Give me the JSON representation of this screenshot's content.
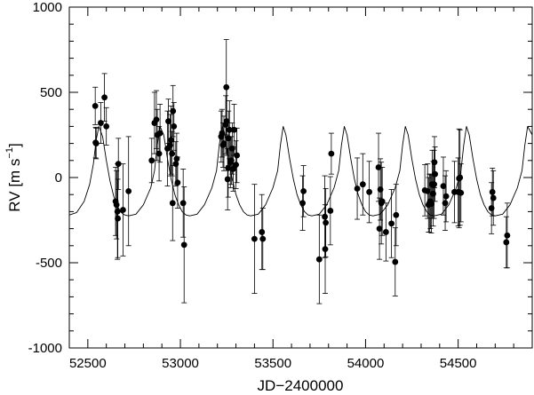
{
  "chart_data": {
    "type": "scatter",
    "title": "",
    "xlabel": "JD−2400000",
    "ylabel": "RV  [m s",
    "ylabel_exp": "−1",
    "ylabel_end": "]",
    "xlim": [
      52400,
      54900
    ],
    "ylim": [
      -1000,
      1000
    ],
    "grid": false,
    "x_ticks": [
      52500,
      53000,
      53500,
      54000,
      54500
    ],
    "x_tick_labels": [
      "52500",
      "53000",
      "53500",
      "54000",
      "54500"
    ],
    "y_ticks": [
      -1000,
      -500,
      0,
      500,
      1000
    ],
    "y_tick_labels": [
      "-1000",
      "-500",
      "0",
      "500",
      "1000"
    ],
    "series": [
      {
        "kind": "points_with_errorbars",
        "color": "#000000",
        "points": [
          {
            "x": 52540,
            "y": 420,
            "err": 110
          },
          {
            "x": 52542,
            "y": 205,
            "err": 90
          },
          {
            "x": 52545,
            "y": 200,
            "err": 90
          },
          {
            "x": 52570,
            "y": 320,
            "err": 120
          },
          {
            "x": 52590,
            "y": 470,
            "err": 140
          },
          {
            "x": 52600,
            "y": 300,
            "err": 110
          },
          {
            "x": 52650,
            "y": -140,
            "err": 200
          },
          {
            "x": 52655,
            "y": -160,
            "err": 200
          },
          {
            "x": 52660,
            "y": -200,
            "err": 280
          },
          {
            "x": 52662,
            "y": -240,
            "err": 230
          },
          {
            "x": 52665,
            "y": 80,
            "err": 150
          },
          {
            "x": 52690,
            "y": -190,
            "err": 270
          },
          {
            "x": 52720,
            "y": -80,
            "err": 320
          },
          {
            "x": 52845,
            "y": 100,
            "err": 130
          },
          {
            "x": 52860,
            "y": 320,
            "err": 180
          },
          {
            "x": 52870,
            "y": 340,
            "err": 170
          },
          {
            "x": 52875,
            "y": 250,
            "err": 150
          },
          {
            "x": 52885,
            "y": 140,
            "err": 160
          },
          {
            "x": 52890,
            "y": 260,
            "err": 170
          },
          {
            "x": 52930,
            "y": 170,
            "err": 220
          },
          {
            "x": 52935,
            "y": 330,
            "err": 130
          },
          {
            "x": 52945,
            "y": 190,
            "err": 180
          },
          {
            "x": 52950,
            "y": 220,
            "err": 200
          },
          {
            "x": 52955,
            "y": 140,
            "err": 130
          },
          {
            "x": 52958,
            "y": -150,
            "err": 220
          },
          {
            "x": 52960,
            "y": 390,
            "err": 150
          },
          {
            "x": 52965,
            "y": 300,
            "err": 140
          },
          {
            "x": 52975,
            "y": 80,
            "err": 130
          },
          {
            "x": 52980,
            "y": 110,
            "err": 150
          },
          {
            "x": 52985,
            "y": -30,
            "err": 150
          },
          {
            "x": 53015,
            "y": -150,
            "err": 200
          },
          {
            "x": 53020,
            "y": -395,
            "err": 340
          },
          {
            "x": 53220,
            "y": 240,
            "err": 150
          },
          {
            "x": 53225,
            "y": 260,
            "err": 140
          },
          {
            "x": 53230,
            "y": 190,
            "err": 130
          },
          {
            "x": 53235,
            "y": 200,
            "err": 160
          },
          {
            "x": 53245,
            "y": 310,
            "err": 170
          },
          {
            "x": 53248,
            "y": 530,
            "err": 280
          },
          {
            "x": 53250,
            "y": 330,
            "err": 200
          },
          {
            "x": 53255,
            "y": -10,
            "err": 180
          },
          {
            "x": 53258,
            "y": 55,
            "err": 170
          },
          {
            "x": 53260,
            "y": 230,
            "err": 160
          },
          {
            "x": 53265,
            "y": 280,
            "err": 170
          },
          {
            "x": 53270,
            "y": 90,
            "err": 150
          },
          {
            "x": 53275,
            "y": 100,
            "err": 140
          },
          {
            "x": 53280,
            "y": 170,
            "err": 150
          },
          {
            "x": 53285,
            "y": 50,
            "err": 130
          },
          {
            "x": 53290,
            "y": 280,
            "err": 150
          },
          {
            "x": 53300,
            "y": 75,
            "err": 140
          },
          {
            "x": 53305,
            "y": 130,
            "err": 160
          },
          {
            "x": 53400,
            "y": -360,
            "err": 320
          },
          {
            "x": 53440,
            "y": -320,
            "err": 220
          },
          {
            "x": 53445,
            "y": -360,
            "err": 180
          },
          {
            "x": 53660,
            "y": -150,
            "err": 160
          },
          {
            "x": 53665,
            "y": -80,
            "err": 150
          },
          {
            "x": 53750,
            "y": -480,
            "err": 260
          },
          {
            "x": 53780,
            "y": -230,
            "err": 240
          },
          {
            "x": 53782,
            "y": -420,
            "err": 260
          },
          {
            "x": 53785,
            "y": -265,
            "err": 200
          },
          {
            "x": 53810,
            "y": -195,
            "err": 200
          },
          {
            "x": 53815,
            "y": 140,
            "err": 120
          },
          {
            "x": 53955,
            "y": -65,
            "err": 180
          },
          {
            "x": 53985,
            "y": -40,
            "err": 180
          },
          {
            "x": 54020,
            "y": -85,
            "err": 180
          },
          {
            "x": 54070,
            "y": 60,
            "err": 200
          },
          {
            "x": 54075,
            "y": -300,
            "err": 180
          },
          {
            "x": 54080,
            "y": -70,
            "err": 180
          },
          {
            "x": 54085,
            "y": -150,
            "err": 240
          },
          {
            "x": 54090,
            "y": -140,
            "err": 200
          },
          {
            "x": 54110,
            "y": -320,
            "err": 170
          },
          {
            "x": 54140,
            "y": -270,
            "err": 200
          },
          {
            "x": 54160,
            "y": -495,
            "err": 200
          },
          {
            "x": 54165,
            "y": -220,
            "err": 180
          },
          {
            "x": 54320,
            "y": -75,
            "err": 150
          },
          {
            "x": 54335,
            "y": -80,
            "err": 160
          },
          {
            "x": 54340,
            "y": -160,
            "err": 160
          },
          {
            "x": 54345,
            "y": -150,
            "err": 170
          },
          {
            "x": 54350,
            "y": -140,
            "err": 160
          },
          {
            "x": 54355,
            "y": -155,
            "err": 170
          },
          {
            "x": 54360,
            "y": -40,
            "err": 200
          },
          {
            "x": 54365,
            "y": -95,
            "err": 190
          },
          {
            "x": 54370,
            "y": -40,
            "err": 200
          },
          {
            "x": 54372,
            "y": 90,
            "err": 150
          },
          {
            "x": 54375,
            "y": 20,
            "err": 160
          },
          {
            "x": 54420,
            "y": -50,
            "err": 170
          },
          {
            "x": 54430,
            "y": -150,
            "err": 160
          },
          {
            "x": 54435,
            "y": -110,
            "err": 150
          },
          {
            "x": 54480,
            "y": -85,
            "err": 180
          },
          {
            "x": 54500,
            "y": -85,
            "err": 200
          },
          {
            "x": 54505,
            "y": -5,
            "err": 290
          },
          {
            "x": 54510,
            "y": 0,
            "err": 280
          },
          {
            "x": 54515,
            "y": -90,
            "err": 170
          },
          {
            "x": 54680,
            "y": -180,
            "err": 150
          },
          {
            "x": 54685,
            "y": -85,
            "err": 140
          },
          {
            "x": 54690,
            "y": -120,
            "err": 160
          },
          {
            "x": 54760,
            "y": -380,
            "err": 150
          },
          {
            "x": 54765,
            "y": -340,
            "err": 190
          }
        ]
      },
      {
        "kind": "model_curve",
        "color": "#000000",
        "x": [
          52400,
          52440,
          52480,
          52510,
          52530,
          52545,
          52560,
          52580,
          52600,
          52620,
          52640,
          52660,
          52680,
          52700,
          52720,
          52760,
          52800,
          52840,
          52860,
          52875,
          52890,
          52910,
          52930,
          52950,
          52970,
          52990,
          53010,
          53030,
          53050,
          53090,
          53130,
          53170,
          53195,
          53210,
          53225,
          53240,
          53260,
          53280,
          53300,
          53320,
          53340,
          53360,
          53380,
          53420,
          53460,
          53500,
          53525,
          53540,
          53555,
          53570,
          53590,
          53610,
          53630,
          53650,
          53670,
          53690,
          53710,
          53750,
          53790,
          53830,
          53855,
          53870,
          53885,
          53900,
          53920,
          53940,
          53960,
          53980,
          54000,
          54020,
          54040,
          54080,
          54120,
          54160,
          54185,
          54200,
          54215,
          54230,
          54250,
          54270,
          54290,
          54310,
          54330,
          54350,
          54370,
          54410,
          54450,
          54490,
          54515,
          54530,
          54545,
          54560,
          54580,
          54600,
          54620,
          54640,
          54660,
          54680,
          54700,
          54740,
          54780,
          54820,
          54845,
          54860,
          54875,
          54900
        ],
        "y": [
          -220,
          -205,
          -140,
          -40,
          80,
          220,
          300,
          240,
          100,
          -20,
          -110,
          -170,
          -205,
          -220,
          -225,
          -215,
          -160,
          -60,
          40,
          190,
          300,
          250,
          110,
          -10,
          -100,
          -160,
          -200,
          -220,
          -225,
          -215,
          -160,
          -60,
          40,
          190,
          300,
          250,
          110,
          -10,
          -100,
          -160,
          -200,
          -220,
          -225,
          -215,
          -160,
          -60,
          40,
          190,
          300,
          250,
          110,
          -10,
          -100,
          -160,
          -200,
          -220,
          -225,
          -215,
          -160,
          -60,
          40,
          190,
          300,
          250,
          110,
          -10,
          -100,
          -160,
          -200,
          -220,
          -225,
          -215,
          -160,
          -60,
          40,
          190,
          300,
          250,
          110,
          -10,
          -100,
          -160,
          -200,
          -220,
          -225,
          -215,
          -160,
          -60,
          40,
          190,
          300,
          250,
          110,
          -10,
          -100,
          -160,
          -200,
          -220,
          -225,
          -215,
          -160,
          -60,
          40,
          190,
          300,
          250
        ]
      }
    ]
  }
}
